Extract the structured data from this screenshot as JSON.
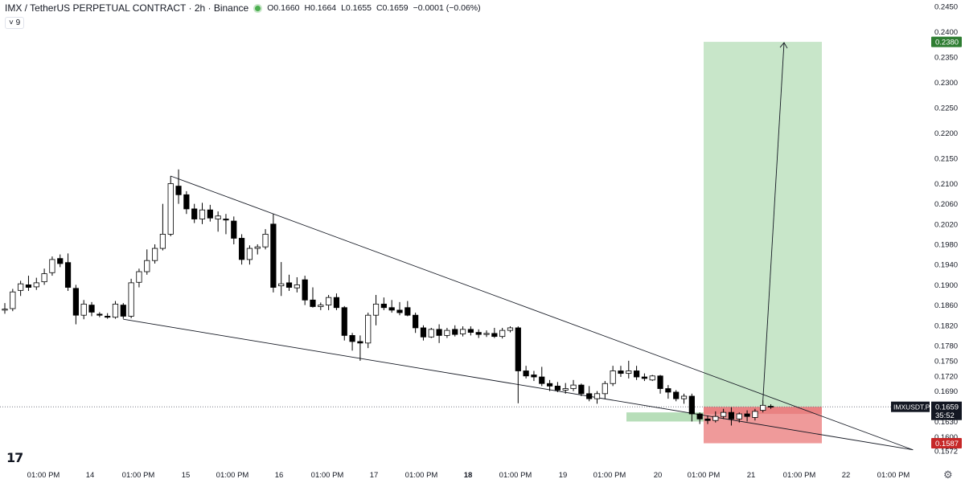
{
  "header": {
    "symbol": "IMX / TetherUS PERPETUAL CONTRACT · 2h · Binance",
    "open": "O0.1660",
    "high": "H0.1664",
    "low": "L0.1655",
    "close": "C0.1659",
    "change": "−0.0001 (−0.06%)",
    "indicator_count": "9"
  },
  "chart_data": {
    "type": "candlestick",
    "y_axis_ticks": [
      "0.2450",
      "0.2400",
      "0.2350",
      "0.2300",
      "0.2250",
      "0.2200",
      "0.2150",
      "0.2100",
      "0.2060",
      "0.2020",
      "0.1980",
      "0.1940",
      "0.1900",
      "0.1860",
      "0.1820",
      "0.1780",
      "0.1750",
      "0.1720",
      "0.1690",
      "0.1630",
      "0.1600",
      "0.1572"
    ],
    "x_axis_ticks": [
      "01:00 PM",
      "14",
      "01:00 PM",
      "15",
      "01:00 PM",
      "16",
      "01:00 PM",
      "17",
      "01:00 PM",
      "18",
      "01:00 PM",
      "19",
      "01:00 PM",
      "20",
      "01:00 PM",
      "21",
      "01:00 PM",
      "22",
      "01:00 PM"
    ],
    "price_labels": {
      "target": "0.2380",
      "stop": "0.1587",
      "current": "0.1659",
      "countdown": "35:52",
      "symbol_tag": "IMXUSDT.P"
    },
    "colors": {
      "up_body": "#ffffff",
      "down_body": "#000000",
      "wick": "#000000",
      "profit_zone": "#c8e6c9",
      "loss_zone": "#ef9a9a",
      "target_tag": "#2e7d32",
      "stop_tag": "#c62828"
    },
    "candles": [
      {
        "o": 0.185,
        "h": 0.1864,
        "l": 0.1843,
        "c": 0.1852
      },
      {
        "o": 0.1853,
        "h": 0.1892,
        "l": 0.1848,
        "c": 0.1886
      },
      {
        "o": 0.1889,
        "h": 0.1908,
        "l": 0.1878,
        "c": 0.1902
      },
      {
        "o": 0.19,
        "h": 0.1918,
        "l": 0.1888,
        "c": 0.1895
      },
      {
        "o": 0.1896,
        "h": 0.1914,
        "l": 0.189,
        "c": 0.1904
      },
      {
        "o": 0.1906,
        "h": 0.1932,
        "l": 0.19,
        "c": 0.1922
      },
      {
        "o": 0.1924,
        "h": 0.1956,
        "l": 0.1918,
        "c": 0.195
      },
      {
        "o": 0.1952,
        "h": 0.196,
        "l": 0.1935,
        "c": 0.1942
      },
      {
        "o": 0.1944,
        "h": 0.1962,
        "l": 0.1888,
        "c": 0.1895
      },
      {
        "o": 0.1893,
        "h": 0.19,
        "l": 0.1822,
        "c": 0.184
      },
      {
        "o": 0.184,
        "h": 0.187,
        "l": 0.1832,
        "c": 0.1862
      },
      {
        "o": 0.186,
        "h": 0.1866,
        "l": 0.1838,
        "c": 0.1846
      },
      {
        "o": 0.1842,
        "h": 0.1846,
        "l": 0.1836,
        "c": 0.184
      },
      {
        "o": 0.1838,
        "h": 0.1844,
        "l": 0.1833,
        "c": 0.1836
      },
      {
        "o": 0.1836,
        "h": 0.1868,
        "l": 0.1833,
        "c": 0.1862
      },
      {
        "o": 0.186,
        "h": 0.1864,
        "l": 0.1833,
        "c": 0.1838
      },
      {
        "o": 0.1838,
        "h": 0.1912,
        "l": 0.1834,
        "c": 0.1904
      },
      {
        "o": 0.1905,
        "h": 0.1932,
        "l": 0.1895,
        "c": 0.1926
      },
      {
        "o": 0.1926,
        "h": 0.197,
        "l": 0.192,
        "c": 0.1948
      },
      {
        "o": 0.1948,
        "h": 0.198,
        "l": 0.1942,
        "c": 0.1972
      },
      {
        "o": 0.1972,
        "h": 0.206,
        "l": 0.1968,
        "c": 0.2
      },
      {
        "o": 0.2,
        "h": 0.2115,
        "l": 0.1996,
        "c": 0.21
      },
      {
        "o": 0.2095,
        "h": 0.2128,
        "l": 0.206,
        "c": 0.2078
      },
      {
        "o": 0.2078,
        "h": 0.2085,
        "l": 0.204,
        "c": 0.205
      },
      {
        "o": 0.205,
        "h": 0.206,
        "l": 0.2022,
        "c": 0.203
      },
      {
        "o": 0.203,
        "h": 0.2062,
        "l": 0.202,
        "c": 0.2048
      },
      {
        "o": 0.2048,
        "h": 0.2058,
        "l": 0.2025,
        "c": 0.2032
      },
      {
        "o": 0.203,
        "h": 0.2045,
        "l": 0.2005,
        "c": 0.2036
      },
      {
        "o": 0.203,
        "h": 0.204,
        "l": 0.2,
        "c": 0.2028
      },
      {
        "o": 0.2026,
        "h": 0.2035,
        "l": 0.198,
        "c": 0.1992
      },
      {
        "o": 0.1992,
        "h": 0.2,
        "l": 0.194,
        "c": 0.195
      },
      {
        "o": 0.195,
        "h": 0.1978,
        "l": 0.194,
        "c": 0.1972
      },
      {
        "o": 0.1972,
        "h": 0.198,
        "l": 0.196,
        "c": 0.1975
      },
      {
        "o": 0.1975,
        "h": 0.201,
        "l": 0.197,
        "c": 0.2
      },
      {
        "o": 0.202,
        "h": 0.204,
        "l": 0.1885,
        "c": 0.1895
      },
      {
        "o": 0.1898,
        "h": 0.1945,
        "l": 0.1878,
        "c": 0.1902
      },
      {
        "o": 0.1904,
        "h": 0.192,
        "l": 0.1888,
        "c": 0.1895
      },
      {
        "o": 0.1894,
        "h": 0.1915,
        "l": 0.1885,
        "c": 0.19
      },
      {
        "o": 0.191,
        "h": 0.1918,
        "l": 0.186,
        "c": 0.187
      },
      {
        "o": 0.187,
        "h": 0.1895,
        "l": 0.1855,
        "c": 0.1857
      },
      {
        "o": 0.1857,
        "h": 0.1865,
        "l": 0.185,
        "c": 0.186
      },
      {
        "o": 0.186,
        "h": 0.188,
        "l": 0.185,
        "c": 0.1875
      },
      {
        "o": 0.1875,
        "h": 0.1883,
        "l": 0.185,
        "c": 0.1855
      },
      {
        "o": 0.1855,
        "h": 0.1858,
        "l": 0.179,
        "c": 0.18
      },
      {
        "o": 0.18,
        "h": 0.1805,
        "l": 0.177,
        "c": 0.1788
      },
      {
        "o": 0.1788,
        "h": 0.18,
        "l": 0.175,
        "c": 0.1785
      },
      {
        "o": 0.1785,
        "h": 0.1845,
        "l": 0.1775,
        "c": 0.184
      },
      {
        "o": 0.184,
        "h": 0.188,
        "l": 0.182,
        "c": 0.1862
      },
      {
        "o": 0.1862,
        "h": 0.1875,
        "l": 0.185,
        "c": 0.1855
      },
      {
        "o": 0.1855,
        "h": 0.187,
        "l": 0.1845,
        "c": 0.185
      },
      {
        "o": 0.185,
        "h": 0.1866,
        "l": 0.184,
        "c": 0.1845
      },
      {
        "o": 0.1855,
        "h": 0.1868,
        "l": 0.1838,
        "c": 0.184
      },
      {
        "o": 0.184,
        "h": 0.1845,
        "l": 0.1805,
        "c": 0.1815
      },
      {
        "o": 0.1815,
        "h": 0.182,
        "l": 0.179,
        "c": 0.1797
      },
      {
        "o": 0.1797,
        "h": 0.1815,
        "l": 0.1795,
        "c": 0.1812
      },
      {
        "o": 0.1812,
        "h": 0.1822,
        "l": 0.1785,
        "c": 0.18
      },
      {
        "o": 0.18,
        "h": 0.1815,
        "l": 0.1795,
        "c": 0.181
      },
      {
        "o": 0.1812,
        "h": 0.182,
        "l": 0.1798,
        "c": 0.1802
      },
      {
        "o": 0.1803,
        "h": 0.1818,
        "l": 0.1798,
        "c": 0.1812
      },
      {
        "o": 0.1812,
        "h": 0.1818,
        "l": 0.18,
        "c": 0.1806
      },
      {
        "o": 0.1806,
        "h": 0.1812,
        "l": 0.1795,
        "c": 0.1802
      },
      {
        "o": 0.1802,
        "h": 0.181,
        "l": 0.1797,
        "c": 0.1804
      },
      {
        "o": 0.1804,
        "h": 0.1815,
        "l": 0.1795,
        "c": 0.1798
      },
      {
        "o": 0.1798,
        "h": 0.1815,
        "l": 0.1794,
        "c": 0.181
      },
      {
        "o": 0.181,
        "h": 0.1818,
        "l": 0.1806,
        "c": 0.1815
      },
      {
        "o": 0.1815,
        "h": 0.1818,
        "l": 0.1666,
        "c": 0.173
      },
      {
        "o": 0.173,
        "h": 0.174,
        "l": 0.1715,
        "c": 0.172
      },
      {
        "o": 0.1722,
        "h": 0.173,
        "l": 0.171,
        "c": 0.1718
      },
      {
        "o": 0.1718,
        "h": 0.1738,
        "l": 0.17,
        "c": 0.1705
      },
      {
        "o": 0.1705,
        "h": 0.1712,
        "l": 0.169,
        "c": 0.17
      },
      {
        "o": 0.17,
        "h": 0.1708,
        "l": 0.1688,
        "c": 0.1692
      },
      {
        "o": 0.1692,
        "h": 0.1706,
        "l": 0.1685,
        "c": 0.1695
      },
      {
        "o": 0.1695,
        "h": 0.1712,
        "l": 0.169,
        "c": 0.1702
      },
      {
        "o": 0.1702,
        "h": 0.1705,
        "l": 0.168,
        "c": 0.1685
      },
      {
        "o": 0.1685,
        "h": 0.17,
        "l": 0.167,
        "c": 0.1675
      },
      {
        "o": 0.1675,
        "h": 0.169,
        "l": 0.1665,
        "c": 0.1685
      },
      {
        "o": 0.1685,
        "h": 0.171,
        "l": 0.1675,
        "c": 0.1705
      },
      {
        "o": 0.1705,
        "h": 0.174,
        "l": 0.17,
        "c": 0.173
      },
      {
        "o": 0.173,
        "h": 0.174,
        "l": 0.1718,
        "c": 0.1725
      },
      {
        "o": 0.1725,
        "h": 0.175,
        "l": 0.1715,
        "c": 0.173
      },
      {
        "o": 0.173,
        "h": 0.174,
        "l": 0.1712,
        "c": 0.1718
      },
      {
        "o": 0.1718,
        "h": 0.1725,
        "l": 0.171,
        "c": 0.1715
      },
      {
        "o": 0.1712,
        "h": 0.1722,
        "l": 0.171,
        "c": 0.172
      },
      {
        "o": 0.172,
        "h": 0.1722,
        "l": 0.1685,
        "c": 0.1695
      },
      {
        "o": 0.1695,
        "h": 0.1702,
        "l": 0.1675,
        "c": 0.1688
      },
      {
        "o": 0.1688,
        "h": 0.1692,
        "l": 0.167,
        "c": 0.1675
      },
      {
        "o": 0.1675,
        "h": 0.1685,
        "l": 0.1665,
        "c": 0.168
      },
      {
        "o": 0.168,
        "h": 0.1685,
        "l": 0.163,
        "c": 0.1645
      },
      {
        "o": 0.1645,
        "h": 0.1648,
        "l": 0.1625,
        "c": 0.1635
      },
      {
        "o": 0.1635,
        "h": 0.1642,
        "l": 0.1625,
        "c": 0.1632
      },
      {
        "o": 0.1632,
        "h": 0.165,
        "l": 0.1628,
        "c": 0.164
      },
      {
        "o": 0.164,
        "h": 0.1655,
        "l": 0.1635,
        "c": 0.1648
      },
      {
        "o": 0.1648,
        "h": 0.1658,
        "l": 0.1622,
        "c": 0.1635
      },
      {
        "o": 0.1635,
        "h": 0.1648,
        "l": 0.1628,
        "c": 0.1645
      },
      {
        "o": 0.1645,
        "h": 0.1652,
        "l": 0.163,
        "c": 0.164
      },
      {
        "o": 0.1638,
        "h": 0.1655,
        "l": 0.1632,
        "c": 0.165
      },
      {
        "o": 0.1652,
        "h": 0.1672,
        "l": 0.1648,
        "c": 0.1662
      },
      {
        "o": 0.166,
        "h": 0.1664,
        "l": 0.1655,
        "c": 0.1659
      }
    ],
    "zones": {
      "entry": 0.1659,
      "target": 0.238,
      "stop": 0.1587,
      "entry_box": {
        "low": 0.163,
        "high": 0.1648
      }
    },
    "wedge": {
      "upper": [
        {
          "i": 21,
          "p": 0.2115
        },
        {
          "i": 115,
          "p": 0.1574
        }
      ],
      "lower": [
        {
          "i": 15,
          "p": 0.1832
        },
        {
          "i": 115,
          "p": 0.1574
        }
      ]
    },
    "arrow": {
      "from": {
        "i": 96,
        "p": 0.1672
      },
      "to": {
        "i": 108,
        "p": 0.238
      }
    },
    "grid": false
  }
}
